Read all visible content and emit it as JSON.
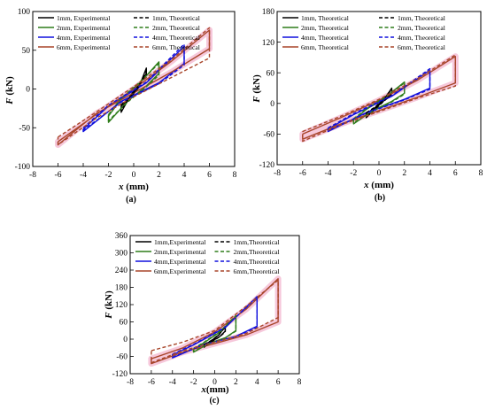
{
  "figure": {
    "colors": {
      "1mm": "#000000",
      "2mm": "#2e7d1a",
      "4mm": "#1111dd",
      "6mm": "#a8452a",
      "shade": "#f3b6cf"
    }
  },
  "chart_data": [
    {
      "type": "line",
      "caption": "(a)",
      "xlabel_italic": "x",
      "xlabel_unit": " (mm)",
      "ylabel_italic": "F",
      "ylabel_unit": " (kN)",
      "xlim": [
        -8,
        8
      ],
      "ylim": [
        -100,
        100
      ],
      "xticks": [
        -8,
        -6,
        -4,
        -2,
        0,
        2,
        4,
        6,
        8
      ],
      "yticks": [
        -100,
        -50,
        0,
        50,
        100
      ],
      "legend": {
        "position": "top",
        "entries": [
          "1mm, Experimental",
          "1mm, Theoretical",
          "2mm, Experimental",
          "2mm, Theoretical",
          "4mm, Experimental",
          "4mm, Theoretical",
          "6mm, Experimental",
          "6mm, Theoretical"
        ]
      },
      "series": [
        {
          "name": "1mm, Experimental",
          "key": "1mm",
          "style": "solid",
          "x": [
            -1,
            -0.3,
            0.4,
            1,
            1,
            0.5,
            -0.2,
            -1,
            -1
          ],
          "y": [
            -22,
            -12,
            2,
            27,
            20,
            8,
            -7,
            -30,
            -22
          ]
        },
        {
          "name": "2mm, Experimental",
          "key": "2mm",
          "style": "solid",
          "x": [
            -2,
            -1,
            0.5,
            2,
            2,
            1,
            -0.5,
            -2,
            -2
          ],
          "y": [
            -35,
            -13,
            8,
            35,
            20,
            4,
            -16,
            -43,
            -35
          ]
        },
        {
          "name": "4mm, Experimental",
          "key": "4mm",
          "style": "solid",
          "x": [
            -4,
            -2,
            1,
            4,
            4,
            2,
            -1,
            -4,
            -4
          ],
          "y": [
            -52,
            -22,
            8,
            55,
            33,
            8,
            -16,
            -55,
            -52
          ]
        },
        {
          "name": "6mm, Experimental",
          "key": "6mm",
          "style": "solid",
          "x": [
            -6,
            -3,
            0,
            3,
            6,
            6,
            3,
            0,
            -3,
            -6,
            -6
          ],
          "y": [
            -68,
            -33,
            0,
            36,
            76,
            52,
            22,
            -5,
            -32,
            -72,
            -68
          ]
        },
        {
          "name": "1mm, Theoretical",
          "key": "1mm",
          "style": "dashed",
          "x": [
            -1,
            -0.3,
            0.4,
            1,
            1,
            0.5,
            -0.2,
            -1,
            -1
          ],
          "y": [
            -20,
            -11,
            3,
            25,
            18,
            7,
            -8,
            -28,
            -20
          ]
        },
        {
          "name": "2mm, Theoretical",
          "key": "2mm",
          "style": "dashed",
          "x": [
            -2,
            -1,
            0.5,
            2,
            2,
            1,
            -0.5,
            -2,
            -2
          ],
          "y": [
            -33,
            -12,
            9,
            33,
            18,
            3,
            -17,
            -41,
            -33
          ]
        },
        {
          "name": "4mm, Theoretical",
          "key": "4mm",
          "style": "dashed",
          "x": [
            -4,
            -2,
            1,
            4,
            4,
            2,
            -1,
            -4,
            -4
          ],
          "y": [
            -50,
            -21,
            9,
            58,
            31,
            7,
            -17,
            -53,
            -50
          ]
        },
        {
          "name": "6mm, Theoretical",
          "key": "6mm",
          "style": "dashed",
          "x": [
            -6,
            -3,
            0,
            3,
            6,
            6,
            3,
            0,
            -3,
            -6,
            -6
          ],
          "y": [
            -62,
            -30,
            3,
            38,
            79,
            40,
            15,
            -10,
            -38,
            -72,
            -62
          ]
        }
      ]
    },
    {
      "type": "line",
      "caption": "(b)",
      "xlabel_italic": "x",
      "xlabel_unit": " (mm)",
      "ylabel_italic": "F",
      "ylabel_unit": " (kN)",
      "xlim": [
        -8,
        8
      ],
      "ylim": [
        -120,
        180
      ],
      "xticks": [
        -8,
        -6,
        -4,
        -2,
        0,
        2,
        4,
        6,
        8
      ],
      "yticks": [
        -120,
        -60,
        0,
        60,
        120,
        180
      ],
      "legend": {
        "position": "top",
        "entries": [
          "1mm, Theoretical",
          "1mm, Theoretical",
          "2mm, Theoretical",
          "2mm, Theoretical",
          "4mm, Theoretical",
          "4mm, Theoretical",
          "6mm, Theoretical",
          "6mm, Theoretical"
        ]
      },
      "series": [
        {
          "name": "1mm, Theoretical",
          "key": "1mm",
          "style": "solid",
          "x": [
            -1,
            -0.3,
            0.4,
            1,
            1,
            0.5,
            -0.2,
            -1,
            -1
          ],
          "y": [
            -20,
            -8,
            8,
            30,
            20,
            8,
            -8,
            -28,
            -20
          ]
        },
        {
          "name": "2mm, Theoretical",
          "key": "2mm",
          "style": "solid",
          "x": [
            -2,
            -1,
            0.5,
            2,
            2,
            1,
            -0.5,
            -2,
            -2
          ],
          "y": [
            -32,
            -12,
            12,
            42,
            20,
            4,
            -14,
            -40,
            -32
          ]
        },
        {
          "name": "4mm, Theoretical",
          "key": "4mm",
          "style": "solid",
          "x": [
            -4,
            -2,
            1,
            4,
            4,
            2,
            -1,
            -4,
            -4
          ],
          "y": [
            -50,
            -22,
            14,
            65,
            30,
            8,
            -18,
            -55,
            -50
          ]
        },
        {
          "name": "6mm, Theoretical",
          "key": "6mm",
          "style": "solid",
          "x": [
            -6,
            -3,
            0,
            3,
            6,
            6,
            3,
            0,
            -3,
            -6,
            -6
          ],
          "y": [
            -60,
            -28,
            6,
            45,
            92,
            40,
            12,
            -14,
            -40,
            -70,
            -60
          ]
        },
        {
          "name": "1mm, Theoretical",
          "key": "1mm",
          "style": "dashed",
          "x": [
            -1,
            -0.3,
            0.4,
            1,
            1,
            0.5,
            -0.2,
            -1,
            -1
          ],
          "y": [
            -18,
            -7,
            9,
            28,
            18,
            7,
            -9,
            -26,
            -18
          ]
        },
        {
          "name": "2mm, Theoretical",
          "key": "2mm",
          "style": "dashed",
          "x": [
            -2,
            -1,
            0.5,
            2,
            2,
            1,
            -0.5,
            -2,
            -2
          ],
          "y": [
            -30,
            -11,
            13,
            40,
            18,
            3,
            -15,
            -38,
            -30
          ]
        },
        {
          "name": "4mm, Theoretical",
          "key": "4mm",
          "style": "dashed",
          "x": [
            -4,
            -2,
            1,
            4,
            4,
            2,
            -1,
            -4,
            -4
          ],
          "y": [
            -48,
            -20,
            15,
            68,
            28,
            7,
            -19,
            -53,
            -48
          ]
        },
        {
          "name": "6mm, Theoretical",
          "key": "6mm",
          "style": "dashed",
          "x": [
            -6,
            -3,
            0,
            3,
            6,
            6,
            3,
            0,
            -3,
            -6,
            -6
          ],
          "y": [
            -55,
            -25,
            8,
            48,
            95,
            34,
            10,
            -16,
            -42,
            -74,
            -55
          ]
        }
      ]
    },
    {
      "type": "line",
      "caption": "(c)",
      "xlabel_italic": "x",
      "xlabel_unit": "(mm)",
      "ylabel_italic": "F",
      "ylabel_unit": " (kN)",
      "xlim": [
        -8,
        8
      ],
      "ylim": [
        -120,
        360
      ],
      "xticks": [
        -8,
        -6,
        -4,
        -2,
        0,
        2,
        4,
        6,
        8
      ],
      "yticks": [
        -120,
        -60,
        0,
        60,
        120,
        180,
        240,
        300,
        360
      ],
      "legend": {
        "position": "top",
        "entries": [
          "1mm,Experimental",
          "1mm,Theoretical",
          "2mm,Experimental",
          "2mm,Theoretical",
          "4mm,Experimental",
          "4mm,Theoretical",
          "6mm,Experimental",
          "6mm,Theoretical"
        ]
      },
      "series": [
        {
          "name": "1mm,Experimental",
          "key": "1mm",
          "style": "solid",
          "x": [
            -1,
            -0.3,
            0.4,
            1,
            1,
            0.5,
            -0.2,
            -1,
            -1
          ],
          "y": [
            -20,
            -5,
            15,
            45,
            28,
            10,
            -6,
            -28,
            -20
          ]
        },
        {
          "name": "2mm,Experimental",
          "key": "2mm",
          "style": "solid",
          "x": [
            -2,
            -1,
            0.5,
            2,
            2,
            1,
            -0.5,
            -2,
            -2
          ],
          "y": [
            -35,
            -12,
            25,
            80,
            30,
            5,
            -14,
            -45,
            -35
          ]
        },
        {
          "name": "4mm,Experimental",
          "key": "4mm",
          "style": "solid",
          "x": [
            -4,
            -2,
            1,
            4,
            4,
            2,
            -1,
            -4,
            -4
          ],
          "y": [
            -55,
            -20,
            40,
            148,
            45,
            10,
            -18,
            -65,
            -55
          ]
        },
        {
          "name": "6mm,Experimental",
          "key": "6mm",
          "style": "solid",
          "x": [
            -6,
            -3,
            0,
            3,
            6,
            6,
            3,
            0,
            -3,
            -6,
            -6
          ],
          "y": [
            -68,
            -30,
            25,
            105,
            210,
            60,
            15,
            -15,
            -45,
            -85,
            -68
          ]
        },
        {
          "name": "1mm,Theoretical",
          "key": "1mm",
          "style": "dashed",
          "x": [
            -1,
            -0.3,
            0.4,
            1,
            1,
            0.5,
            -0.2,
            -1,
            -1
          ],
          "y": [
            -18,
            -4,
            16,
            42,
            26,
            9,
            -7,
            -26,
            -18
          ]
        },
        {
          "name": "2mm,Theoretical",
          "key": "2mm",
          "style": "dashed",
          "x": [
            -2,
            -1,
            0.5,
            2,
            2,
            1,
            -0.5,
            -2,
            -2
          ],
          "y": [
            -32,
            -10,
            27,
            82,
            28,
            4,
            -15,
            -43,
            -32
          ]
        },
        {
          "name": "4mm,Theoretical",
          "key": "4mm",
          "style": "dashed",
          "x": [
            -4,
            -2,
            1,
            4,
            4,
            2,
            -1,
            -4,
            -4
          ],
          "y": [
            -52,
            -18,
            42,
            145,
            42,
            9,
            -19,
            -63,
            -52
          ]
        },
        {
          "name": "6mm,Theoretical",
          "key": "6mm",
          "style": "dashed",
          "x": [
            -6,
            -3,
            0,
            3,
            6,
            6,
            3,
            0,
            -3,
            -6,
            -6
          ],
          "y": [
            -40,
            -10,
            30,
            115,
            205,
            75,
            20,
            -10,
            -40,
            -82,
            -40
          ]
        }
      ]
    }
  ]
}
